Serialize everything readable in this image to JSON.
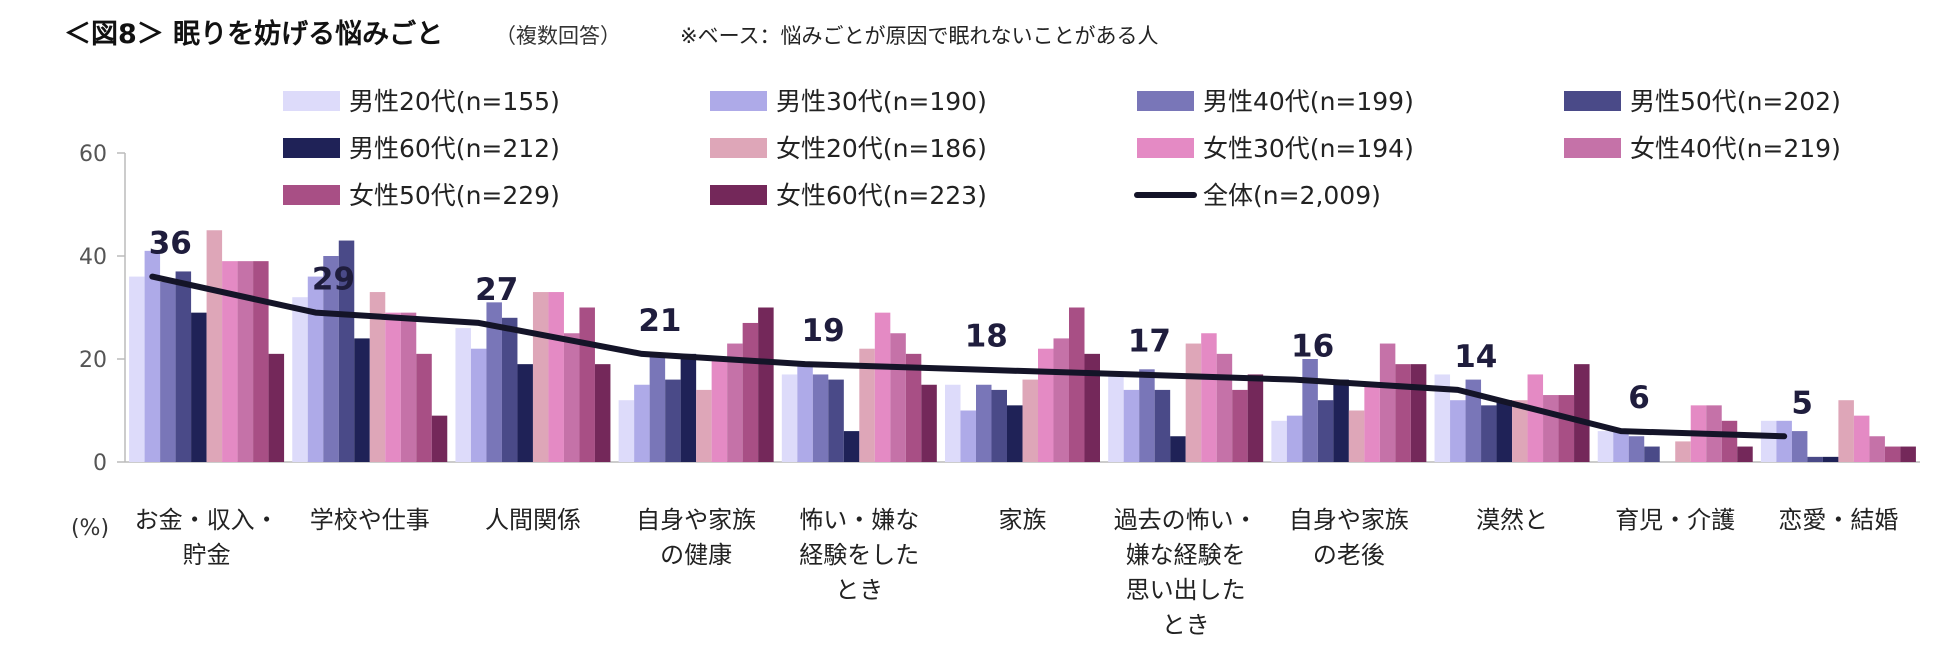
{
  "title": {
    "main": "＜図8＞ 眠りを妨げる悩みごと",
    "sub": "（複数回答）",
    "note": "※ベース：悩みごとが原因で眠れないことがある人"
  },
  "chart_data": {
    "type": "bar",
    "title": "＜図8＞ 眠りを妨げる悩みごと",
    "ylabel": "(%)",
    "ylim": [
      0,
      60
    ],
    "yticks": [
      0,
      20,
      40,
      60
    ],
    "grid": false,
    "legend_position": "top",
    "categories": [
      [
        "お金・収入・",
        "貯金"
      ],
      [
        "学校や仕事"
      ],
      [
        "人間関係"
      ],
      [
        "自身や家族",
        "の健康"
      ],
      [
        "怖い・嫌な",
        "経験をした",
        "とき"
      ],
      [
        "家族"
      ],
      [
        "過去の怖い・",
        "嫌な経験を",
        "思い出した",
        "とき"
      ],
      [
        "自身や家族",
        "の老後"
      ],
      [
        "漠然と"
      ],
      [
        "育児・介護"
      ],
      [
        "恋愛・結婚"
      ]
    ],
    "series": [
      {
        "name": "男性20代(n=155)",
        "color": "#dddbfa",
        "values": [
          36,
          32,
          26,
          12,
          17,
          15,
          17,
          8,
          17,
          6,
          8
        ]
      },
      {
        "name": "男性30代(n=190)",
        "color": "#aeaae8",
        "values": [
          41,
          36,
          22,
          15,
          19,
          10,
          14,
          9,
          12,
          6,
          8
        ]
      },
      {
        "name": "男性40代(n=199)",
        "color": "#7976b8",
        "values": [
          35,
          40,
          31,
          21,
          17,
          15,
          18,
          20,
          16,
          5,
          6
        ]
      },
      {
        "name": "男性50代(n=202)",
        "color": "#4a4a88",
        "values": [
          37,
          43,
          28,
          16,
          16,
          14,
          14,
          12,
          11,
          3,
          1
        ]
      },
      {
        "name": "男性60代(n=212)",
        "color": "#1f2257",
        "values": [
          29,
          24,
          19,
          21,
          6,
          11,
          5,
          16,
          12,
          0,
          1
        ]
      },
      {
        "name": "女性20代(n=186)",
        "color": "#dea6b8",
        "values": [
          45,
          33,
          33,
          14,
          22,
          16,
          23,
          10,
          12,
          4,
          12
        ]
      },
      {
        "name": "女性30代(n=194)",
        "color": "#e48ac4",
        "values": [
          39,
          29,
          33,
          20,
          29,
          22,
          25,
          15,
          17,
          11,
          9
        ]
      },
      {
        "name": "女性40代(n=219)",
        "color": "#c572a8",
        "values": [
          39,
          29,
          25,
          23,
          25,
          24,
          21,
          23,
          13,
          11,
          5
        ]
      },
      {
        "name": "女性50代(n=229)",
        "color": "#a84f85",
        "values": [
          39,
          21,
          30,
          27,
          21,
          30,
          14,
          19,
          13,
          8,
          3
        ]
      },
      {
        "name": "女性60代(n=223)",
        "color": "#74285a",
        "values": [
          21,
          9,
          19,
          30,
          15,
          21,
          17,
          19,
          19,
          3,
          3
        ]
      }
    ],
    "line": {
      "name": "全体(n=2,009)",
      "color": "#141428",
      "values": [
        36,
        29,
        27,
        21,
        19,
        18,
        17,
        16,
        14,
        6,
        5
      ]
    }
  }
}
